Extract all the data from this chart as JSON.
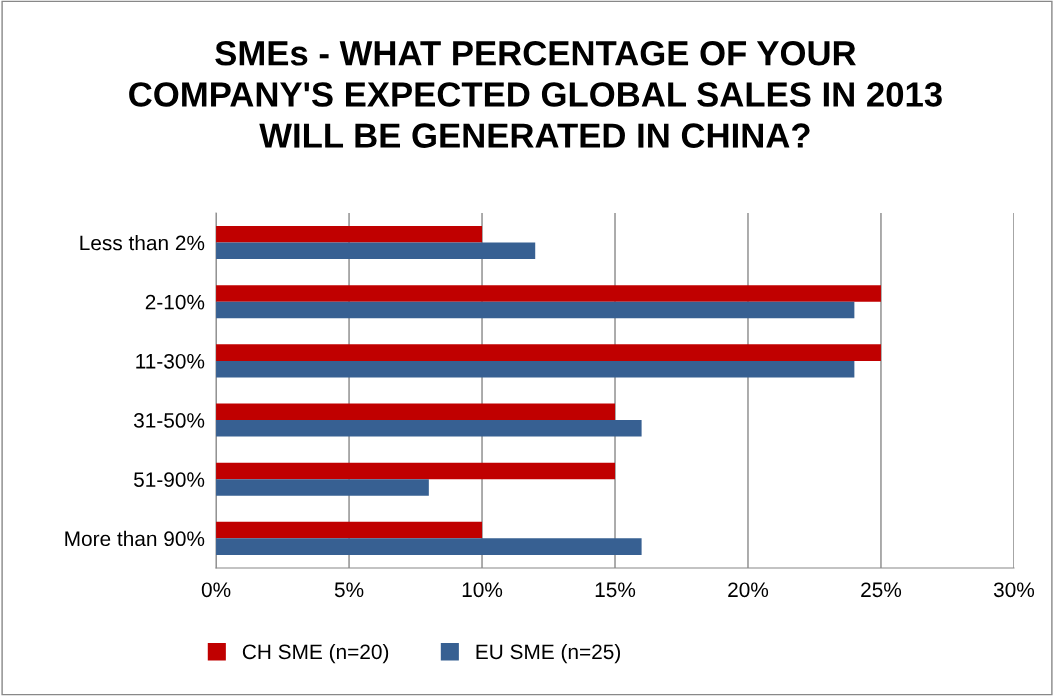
{
  "chart_data": {
    "type": "bar",
    "orientation": "horizontal",
    "title": "SMEs - WHAT PERCENTAGE OF YOUR\nCOMPANY'S EXPECTED GLOBAL SALES IN 2013\nWILL BE GENERATED IN CHINA?",
    "categories": [
      "Less than 2%",
      "2-10%",
      "11-30%",
      "31-50%",
      "51-90%",
      "More than 90%"
    ],
    "series": [
      {
        "name": "CH SME (n=20)",
        "color": "#c00000",
        "values": [
          10,
          25,
          25,
          15,
          15,
          10
        ]
      },
      {
        "name": "EU SME (n=25)",
        "color": "#376092",
        "values": [
          12,
          24,
          24,
          16,
          8,
          16
        ]
      }
    ],
    "xlim": [
      0,
      30
    ],
    "xticks": [
      {
        "value": 0,
        "label": "0%"
      },
      {
        "value": 5,
        "label": "5%"
      },
      {
        "value": 10,
        "label": "10%"
      },
      {
        "value": 15,
        "label": "15%"
      },
      {
        "value": 20,
        "label": "20%"
      },
      {
        "value": 25,
        "label": "25%"
      },
      {
        "value": 30,
        "label": "30%"
      }
    ],
    "grid": "x",
    "legend": "bottom"
  }
}
